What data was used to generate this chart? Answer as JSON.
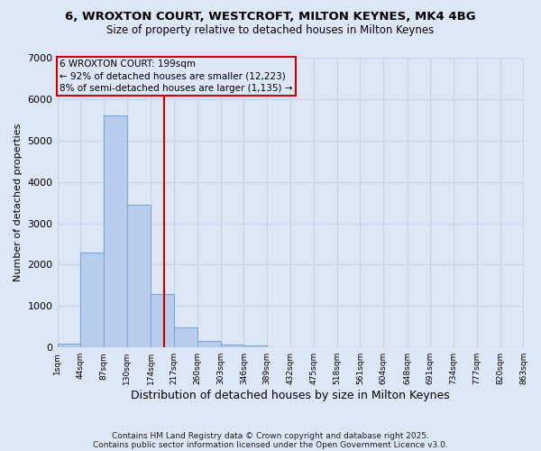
{
  "title1": "6, WROXTON COURT, WESTCROFT, MILTON KEYNES, MK4 4BG",
  "title2": "Size of property relative to detached houses in Milton Keynes",
  "xlabel": "Distribution of detached houses by size in Milton Keynes",
  "ylabel": "Number of detached properties",
  "bins": [
    1,
    44,
    87,
    130,
    174,
    217,
    260,
    303,
    346,
    389,
    432,
    475,
    518,
    561,
    604,
    648,
    691,
    734,
    777,
    820,
    863
  ],
  "counts": [
    100,
    2300,
    5600,
    3450,
    1300,
    480,
    160,
    80,
    50,
    0,
    0,
    0,
    0,
    0,
    0,
    0,
    0,
    0,
    0,
    0
  ],
  "bar_color": "#b8ccec",
  "bar_edge_color": "#7aa8d4",
  "grid_color": "#c8d4e8",
  "background_color": "#dce6f5",
  "property_size": 199,
  "vline_color": "#cc0000",
  "annotation_line1": "6 WROXTON COURT: 199sqm",
  "annotation_line2": "← 92% of detached houses are smaller (12,223)",
  "annotation_line3": "8% of semi-detached houses are larger (1,135) →",
  "annotation_box_color": "#cc0000",
  "ylim": [
    0,
    7000
  ],
  "yticks": [
    0,
    1000,
    2000,
    3000,
    4000,
    5000,
    6000,
    7000
  ],
  "footer1": "Contains HM Land Registry data © Crown copyright and database right 2025.",
  "footer2": "Contains public sector information licensed under the Open Government Licence v3.0.",
  "tick_labels": [
    "1sqm",
    "44sqm",
    "87sqm",
    "130sqm",
    "174sqm",
    "217sqm",
    "260sqm",
    "303sqm",
    "346sqm",
    "389sqm",
    "432sqm",
    "475sqm",
    "518sqm",
    "561sqm",
    "604sqm",
    "648sqm",
    "691sqm",
    "734sqm",
    "777sqm",
    "820sqm",
    "863sqm"
  ]
}
